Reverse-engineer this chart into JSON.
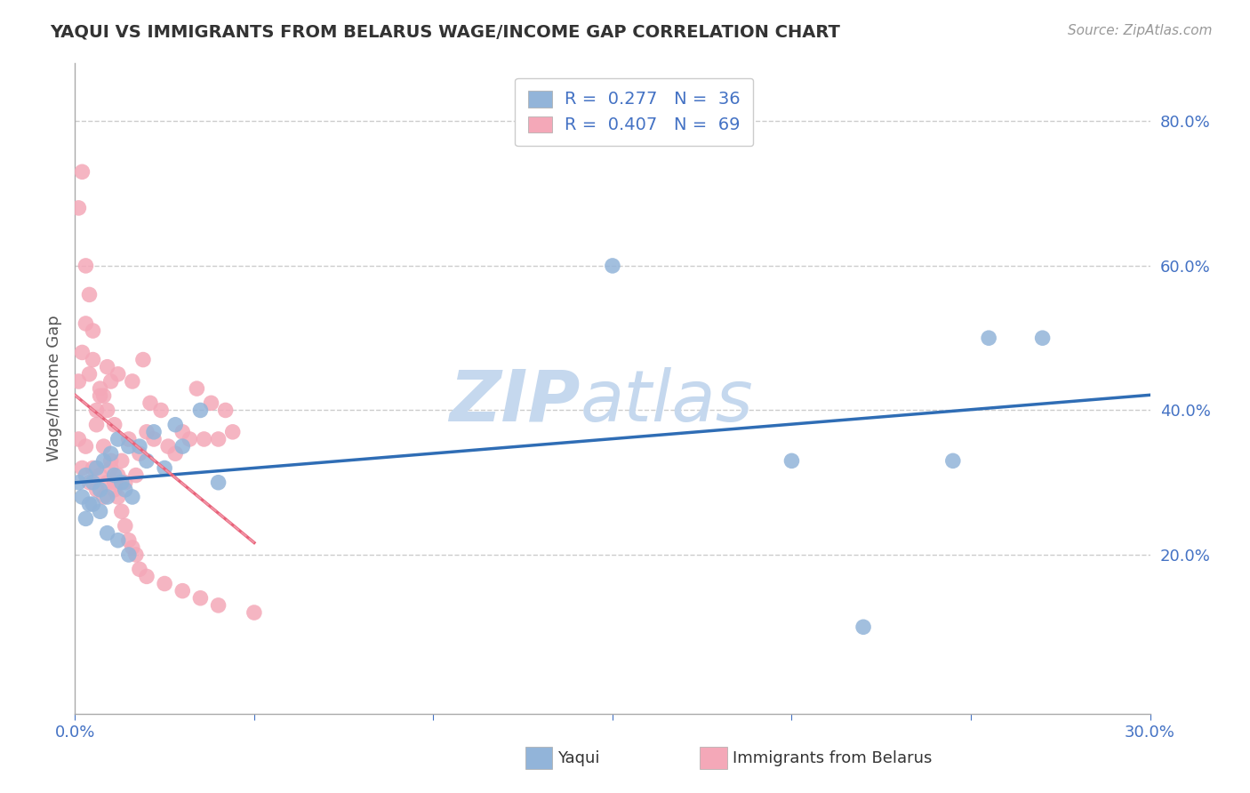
{
  "title": "YAQUI VS IMMIGRANTS FROM BELARUS WAGE/INCOME GAP CORRELATION CHART",
  "source": "Source: ZipAtlas.com",
  "ylabel": "Wage/Income Gap",
  "xlim": [
    0.0,
    0.3
  ],
  "ylim": [
    -0.02,
    0.88
  ],
  "yticks": [
    0.2,
    0.4,
    0.6,
    0.8
  ],
  "ytick_labels": [
    "20.0%",
    "40.0%",
    "60.0%",
    "80.0%"
  ],
  "xticks": [
    0.0,
    0.05,
    0.1,
    0.15,
    0.2,
    0.25,
    0.3
  ],
  "xtick_labels": [
    "0.0%",
    "",
    "",
    "",
    "",
    "",
    "30.0%"
  ],
  "blue_color": "#92B4D9",
  "pink_color": "#F4A8B8",
  "blue_line_color": "#2F6DB5",
  "pink_line_color": "#E8637A",
  "pink_dash_color": "#F4A8B8",
  "tick_color": "#4472C4",
  "watermark_bold": "ZIP",
  "watermark_light": "atlas",
  "watermark_color": "#C5D8EE",
  "background_color": "#FFFFFF",
  "grid_color": "#CCCCCC",
  "yaqui_x": [
    0.001,
    0.002,
    0.003,
    0.004,
    0.005,
    0.006,
    0.007,
    0.008,
    0.009,
    0.01,
    0.011,
    0.012,
    0.013,
    0.014,
    0.015,
    0.016,
    0.018,
    0.02,
    0.022,
    0.025,
    0.028,
    0.03,
    0.035,
    0.04,
    0.003,
    0.005,
    0.007,
    0.009,
    0.012,
    0.015,
    0.15,
    0.2,
    0.22,
    0.245,
    0.255,
    0.27
  ],
  "yaqui_y": [
    0.3,
    0.28,
    0.31,
    0.27,
    0.3,
    0.32,
    0.29,
    0.33,
    0.28,
    0.34,
    0.31,
    0.36,
    0.3,
    0.29,
    0.35,
    0.28,
    0.35,
    0.33,
    0.37,
    0.32,
    0.38,
    0.35,
    0.4,
    0.3,
    0.25,
    0.27,
    0.26,
    0.23,
    0.22,
    0.2,
    0.6,
    0.33,
    0.1,
    0.33,
    0.5,
    0.5
  ],
  "belarus_x": [
    0.001,
    0.001,
    0.002,
    0.002,
    0.003,
    0.003,
    0.004,
    0.004,
    0.005,
    0.005,
    0.006,
    0.006,
    0.007,
    0.007,
    0.008,
    0.008,
    0.009,
    0.009,
    0.01,
    0.01,
    0.011,
    0.011,
    0.012,
    0.012,
    0.013,
    0.014,
    0.015,
    0.016,
    0.017,
    0.018,
    0.019,
    0.02,
    0.021,
    0.022,
    0.024,
    0.026,
    0.028,
    0.03,
    0.032,
    0.034,
    0.036,
    0.038,
    0.04,
    0.042,
    0.044,
    0.001,
    0.002,
    0.003,
    0.004,
    0.005,
    0.006,
    0.007,
    0.008,
    0.009,
    0.01,
    0.011,
    0.012,
    0.013,
    0.014,
    0.015,
    0.016,
    0.017,
    0.018,
    0.02,
    0.025,
    0.03,
    0.035,
    0.04,
    0.05
  ],
  "belarus_y": [
    0.36,
    0.44,
    0.32,
    0.48,
    0.35,
    0.52,
    0.3,
    0.45,
    0.32,
    0.47,
    0.29,
    0.4,
    0.31,
    0.43,
    0.28,
    0.42,
    0.3,
    0.46,
    0.32,
    0.44,
    0.29,
    0.38,
    0.31,
    0.45,
    0.33,
    0.3,
    0.36,
    0.44,
    0.31,
    0.34,
    0.47,
    0.37,
    0.41,
    0.36,
    0.4,
    0.35,
    0.34,
    0.37,
    0.36,
    0.43,
    0.36,
    0.41,
    0.36,
    0.4,
    0.37,
    0.68,
    0.73,
    0.6,
    0.56,
    0.51,
    0.38,
    0.42,
    0.35,
    0.4,
    0.33,
    0.3,
    0.28,
    0.26,
    0.24,
    0.22,
    0.21,
    0.2,
    0.18,
    0.17,
    0.16,
    0.15,
    0.14,
    0.13,
    0.12
  ]
}
